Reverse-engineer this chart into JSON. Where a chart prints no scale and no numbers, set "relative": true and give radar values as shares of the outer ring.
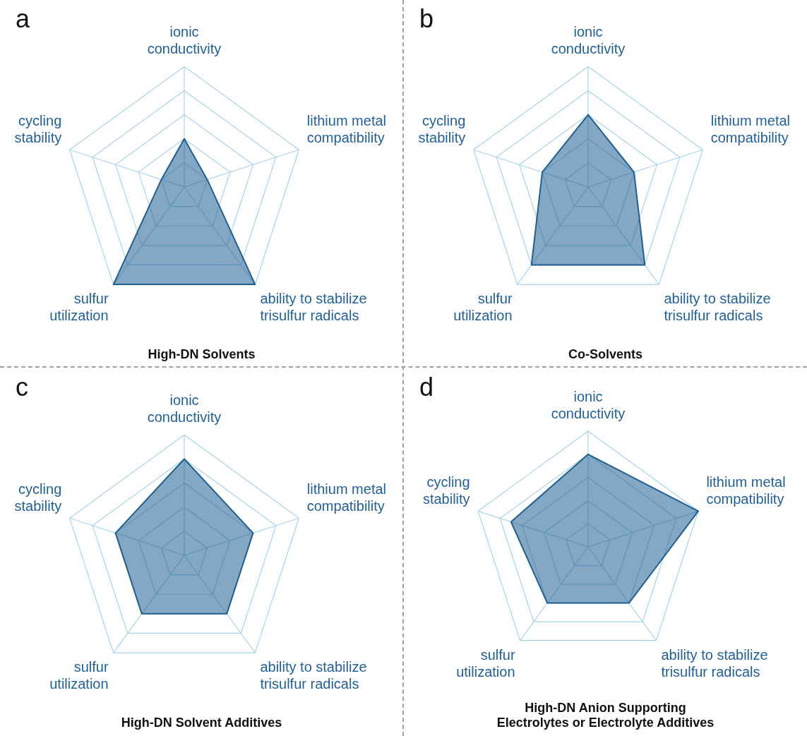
{
  "chart_data": [
    {
      "type": "radar",
      "title": "High-DN Solvents",
      "annotations": [
        "a"
      ],
      "categories": [
        "ionic conductivity",
        "lithium metal compatibility",
        "ability to stabilize trisulfur radicals",
        "sulfur utilization",
        "cycling stability"
      ],
      "relative": true,
      "grid": true,
      "marker": "none",
      "series": [
        {
          "color": "#1f5f91",
          "values": [
            0.4,
            0.2,
            1.0,
            1.0,
            0.2
          ]
        }
      ]
    },
    {
      "type": "radar",
      "title": "Co-Solvents",
      "annotations": [
        "b"
      ],
      "categories": [
        "ionic conductivity",
        "lithium metal compatibility",
        "ability to stabilize trisulfur radicals",
        "sulfur utilization",
        "cycling stability"
      ],
      "relative": true,
      "grid": true,
      "marker": "none",
      "series": [
        {
          "color": "#1f5f91",
          "values": [
            0.6,
            0.4,
            0.8,
            0.8,
            0.4
          ]
        }
      ]
    },
    {
      "type": "radar",
      "title": "High-DN Solvent Additives",
      "annotations": [
        "c"
      ],
      "categories": [
        "ionic conductivity",
        "lithium metal compatibility",
        "ability to stabilize trisulfur radicals",
        "sulfur utilization",
        "cycling stability"
      ],
      "relative": true,
      "grid": true,
      "marker": "none",
      "series": [
        {
          "color": "#1f5f91",
          "values": [
            0.8,
            0.6,
            0.6,
            0.6,
            0.6
          ]
        }
      ]
    },
    {
      "type": "radar",
      "title": "High-DN Anion Supporting Electrolytes or Electrolyte Additives",
      "annotations": [
        "d"
      ],
      "categories": [
        "ionic conductivity",
        "lithium metal compatibility",
        "ability to stabilize trisulfur radicals",
        "sulfur utilization",
        "cycling stability"
      ],
      "relative": true,
      "grid": true,
      "marker": "none",
      "series": [
        {
          "color": "#1f5f91",
          "values": [
            0.8,
            1.0,
            0.6,
            0.6,
            0.7
          ]
        }
      ]
    }
  ]
}
